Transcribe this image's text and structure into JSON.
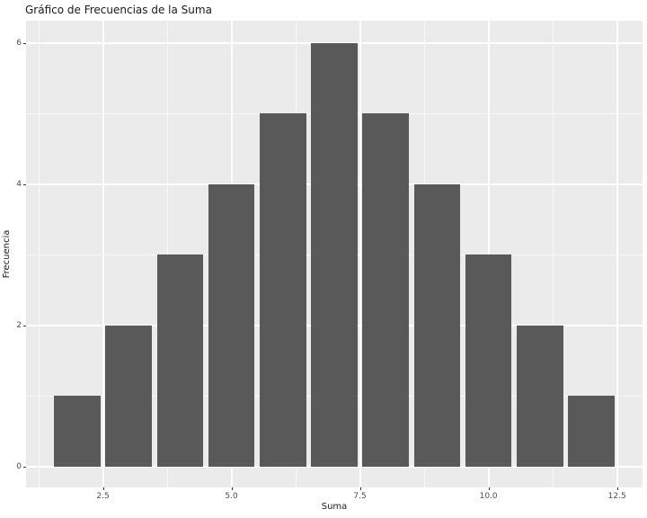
{
  "chart_data": {
    "type": "bar",
    "title": "Gráfico de Frecuencias de la Suma",
    "xlabel": "Suma",
    "ylabel": "Frecuencia",
    "categories": [
      2,
      3,
      4,
      5,
      6,
      7,
      8,
      9,
      10,
      11,
      12
    ],
    "values": [
      1,
      2,
      3,
      4,
      5,
      6,
      5,
      4,
      3,
      2,
      1
    ],
    "bar_width": 0.9,
    "xlim": [
      1.005,
      12.995
    ],
    "ylim": [
      -0.293,
      6.318
    ],
    "x_ticks": [
      2.5,
      5.0,
      7.5,
      10.0,
      12.5
    ],
    "x_tick_labels": [
      "2.5",
      "5.0",
      "7.5",
      "10.0",
      "12.5"
    ],
    "x_minor_ticks": [
      1.25,
      3.75,
      6.25,
      8.75,
      11.25
    ],
    "y_ticks": [
      0,
      2,
      4,
      6
    ],
    "y_tick_labels": [
      "0",
      "2",
      "4",
      "6"
    ],
    "y_minor_ticks": [
      1,
      3,
      5
    ],
    "grid": "on",
    "legend": "none",
    "colors": {
      "bar_fill": "#595959",
      "panel_background": "#EBEBEB",
      "grid_major": "#FFFFFF",
      "grid_minor": "#F7F7F7",
      "tick_label": "#4D4D4D",
      "axis_title": "#1A1A1A",
      "plot_background": "#FFFFFF"
    }
  }
}
